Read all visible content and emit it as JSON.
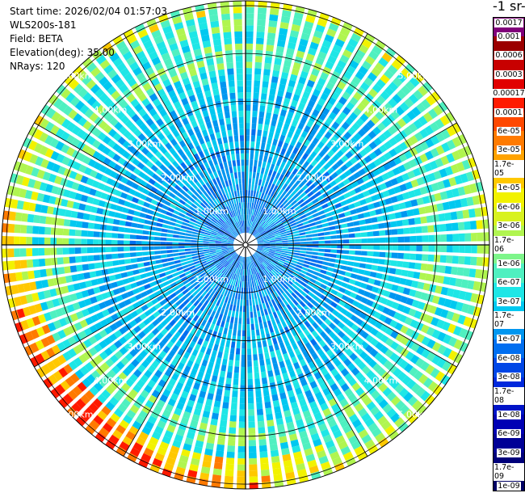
{
  "header": {
    "start_time": "Start time: 2026/02/04 01:57:03",
    "instrument": "WLS200s-181",
    "field": "Field: BETA",
    "elevation": "Elevation(deg): 35.00",
    "nrays": "NRays: 120"
  },
  "colorbar": {
    "title": "-1 sr-",
    "colors": [
      "#80007a",
      "#9b0000",
      "#c80000",
      "#e10000",
      "#ff1a00",
      "#ff4800",
      "#ff7a00",
      "#ffa200",
      "#ffc800",
      "#f2f200",
      "#d8f21e",
      "#b0f550",
      "#7df58a",
      "#4ff0c0",
      "#1ee6e6",
      "#00c8f0",
      "#0096f0",
      "#006ef0",
      "#0046e6",
      "#0028dc",
      "#0014c8",
      "#0000b4",
      "#000096",
      "#00007a",
      "#000064"
    ],
    "labels": [
      "0.0017",
      "0.001",
      "0.0006",
      "0.0003",
      "0.00017",
      "0.0001",
      "6e-05",
      "3e-05",
      "1.7e-05",
      "1e-05",
      "6e-06",
      "3e-06",
      "1.7e-06",
      "1e-06",
      "6e-07",
      "3e-07",
      "1.7e-07",
      "1e-07",
      "6e-08",
      "3e-08",
      "1.7e-08",
      "1e-08",
      "6e-09",
      "3e-09",
      "1.7e-09",
      "1e-09"
    ]
  },
  "chart_data": {
    "type": "heatmap",
    "projection": "polar",
    "nrays": 120,
    "range_rings_km": [
      1,
      2,
      3,
      4,
      5
    ],
    "max_range_km": 5.1,
    "ring_labels": [
      "1.00km",
      "2.00km",
      "3.00km",
      "4.00km",
      "5.00km"
    ],
    "grid": true
  }
}
